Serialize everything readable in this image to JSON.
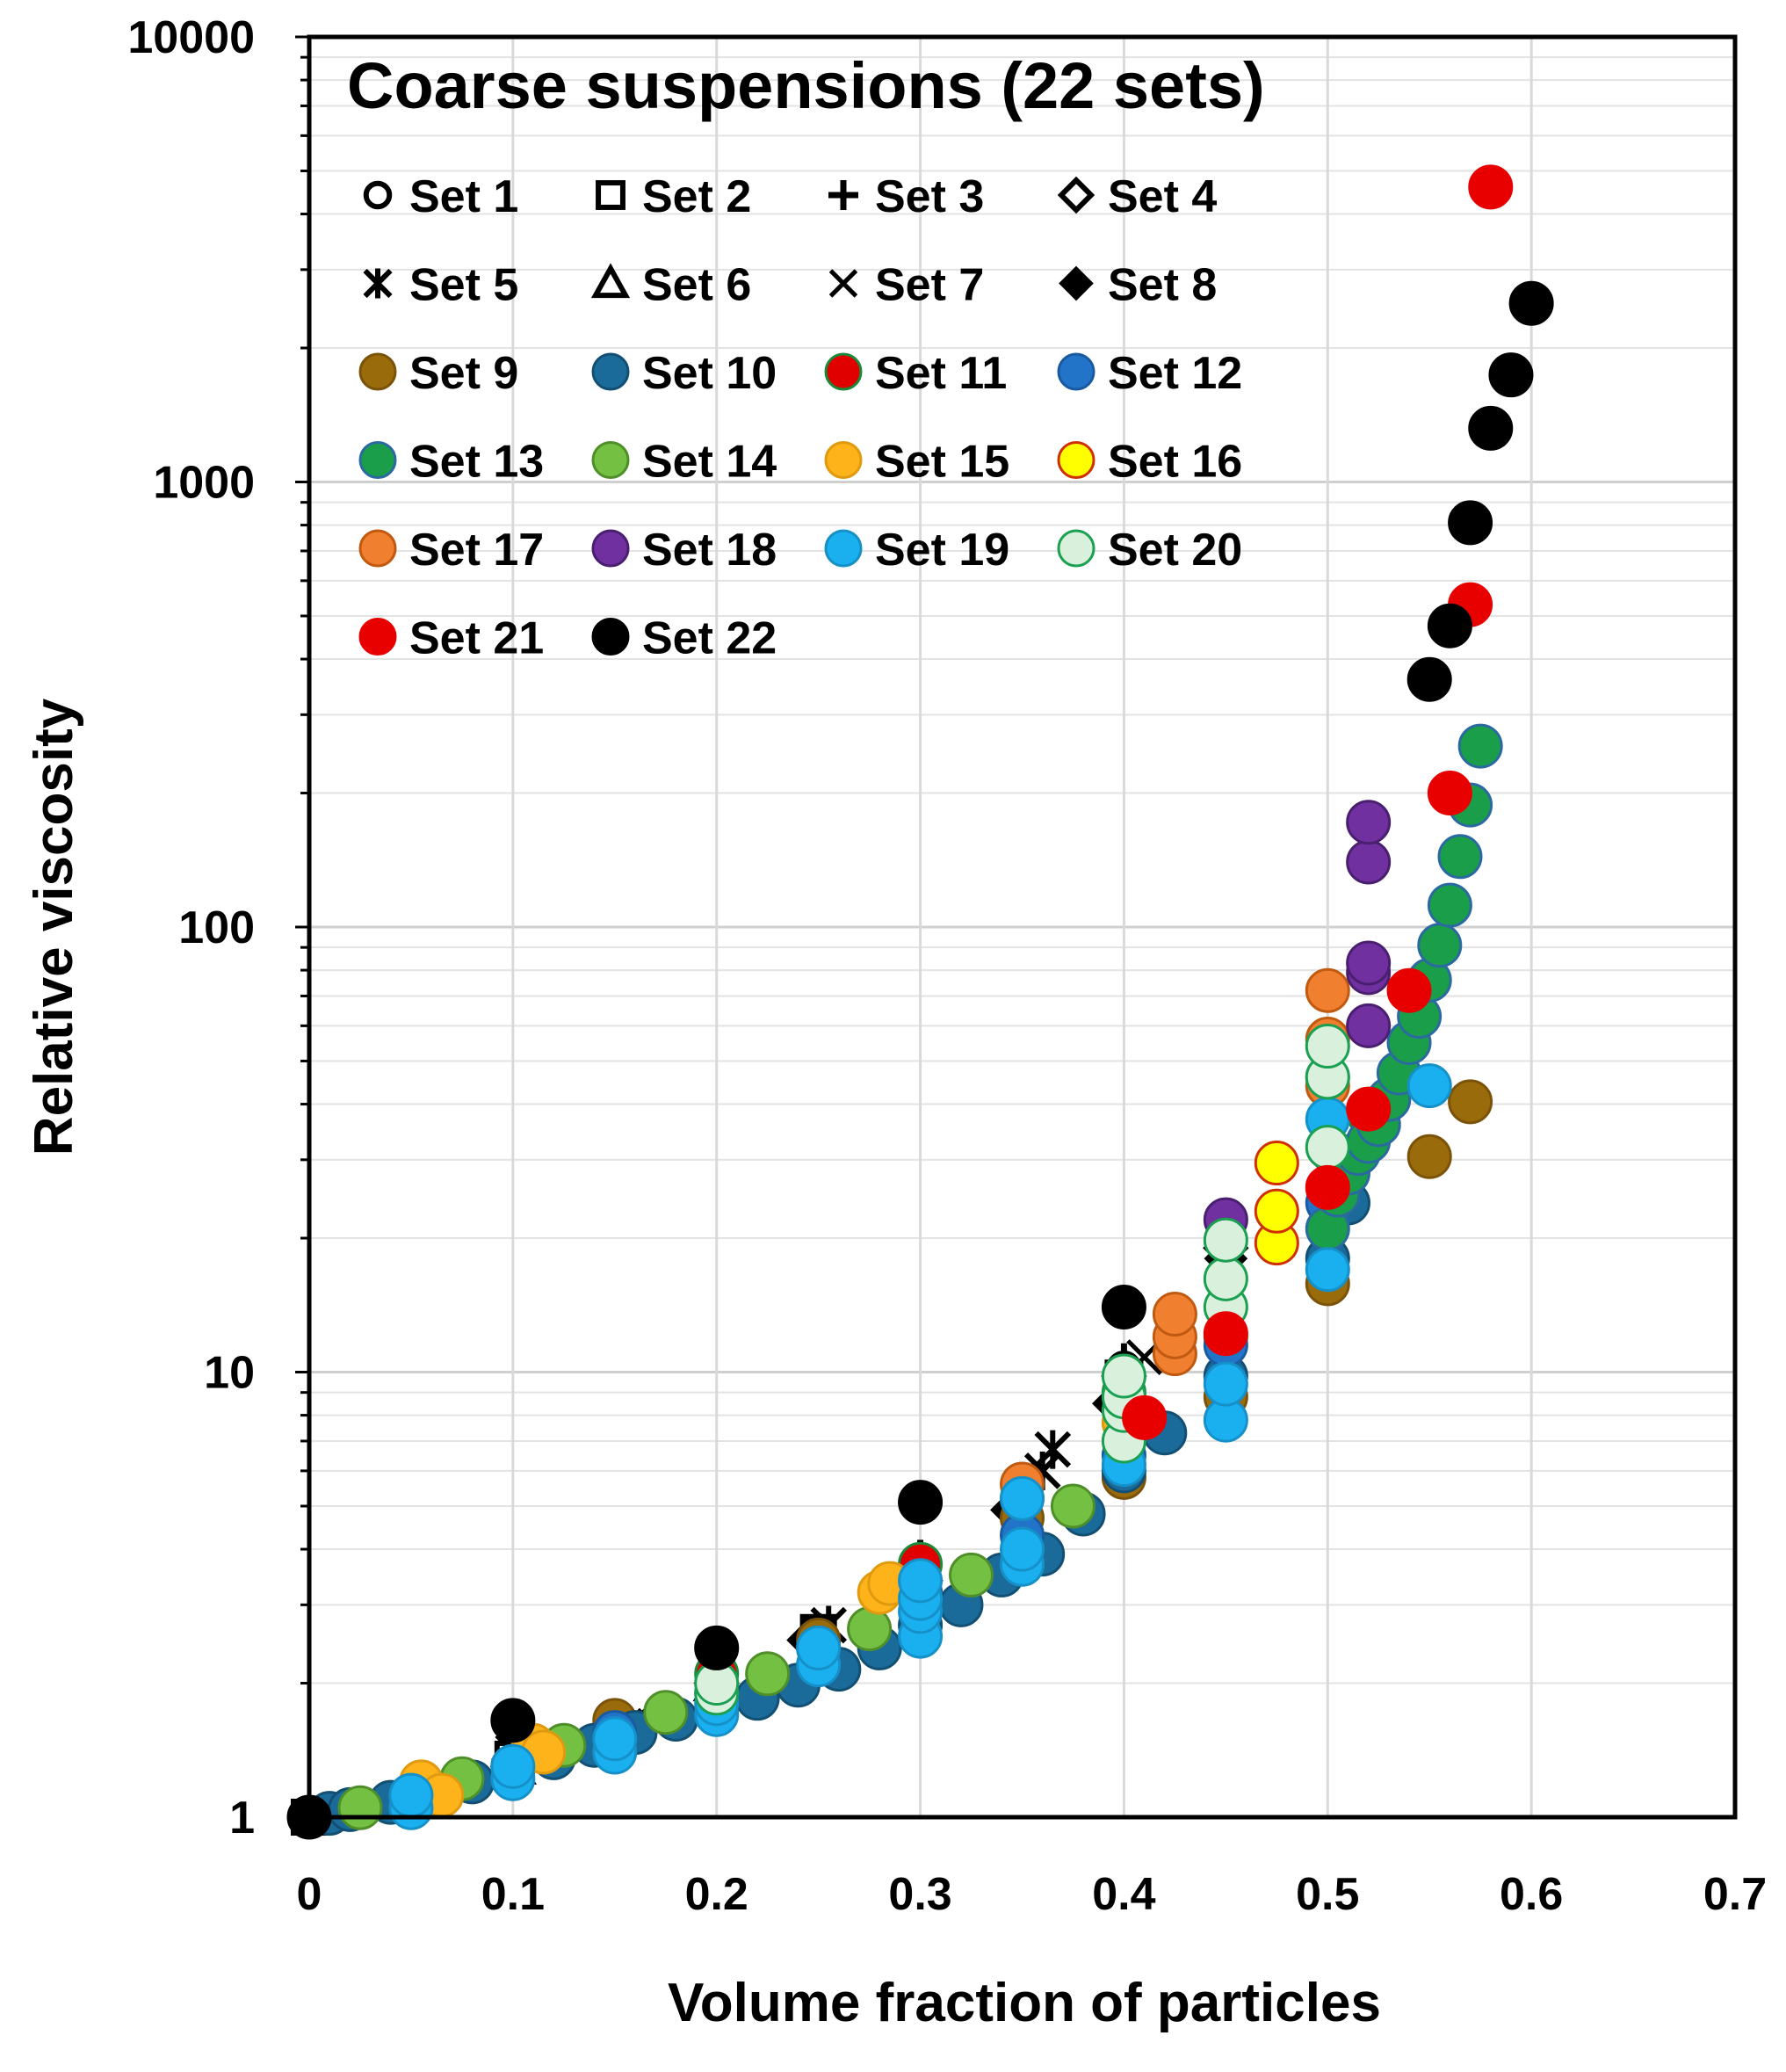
{
  "chart_data": {
    "type": "scatter",
    "title": "Coarse suspensions (22 sets)",
    "xlabel": "Volume fraction of particles",
    "ylabel": "Relative viscosity",
    "xlim": [
      0,
      0.7
    ],
    "ylim": [
      1,
      10000
    ],
    "yscale": "log",
    "grid": true,
    "legend_position": "top-left",
    "xticks": [
      0,
      0.1,
      0.2,
      0.3,
      0.4,
      0.5,
      0.6,
      0.7
    ],
    "xtick_labels": [
      "0",
      "0.1",
      "0.2",
      "0.3",
      "0.4",
      "0.5",
      "0.6",
      "0.7"
    ],
    "yticks": [
      1,
      10,
      100,
      1000,
      10000
    ],
    "ytick_labels": [
      "1",
      "10",
      "100",
      "1000",
      "10000"
    ],
    "series": [
      {
        "name": "Set 1",
        "marker": "circle-open",
        "fill": "#ffffff",
        "stroke": "#000000",
        "points": [
          [
            0,
            1
          ],
          [
            0.1,
            1.4
          ],
          [
            0.2,
            2.2
          ],
          [
            0.3,
            3.6
          ],
          [
            0.4,
            10.2
          ],
          [
            0.45,
            20
          ],
          [
            0.5,
            31
          ]
        ]
      },
      {
        "name": "Set 2",
        "marker": "square-open",
        "fill": "#ffffff",
        "stroke": "#000000",
        "points": [
          [
            0,
            1
          ],
          [
            0.05,
            1.1
          ],
          [
            0.1,
            1.35
          ],
          [
            0.15,
            1.6
          ],
          [
            0.2,
            2.05
          ],
          [
            0.25,
            2.6
          ],
          [
            0.3,
            3.5
          ],
          [
            0.35,
            5.3
          ],
          [
            0.4,
            9.5
          ]
        ]
      },
      {
        "name": "Set 3",
        "marker": "plus",
        "fill": "none",
        "stroke": "#000000",
        "points": [
          [
            0.05,
            1.1
          ],
          [
            0.1,
            1.35
          ],
          [
            0.15,
            1.65
          ],
          [
            0.2,
            2.1
          ],
          [
            0.25,
            2.6
          ],
          [
            0.3,
            3.8
          ],
          [
            0.35,
            5.6
          ],
          [
            0.4,
            10.5
          ]
        ]
      },
      {
        "name": "Set 4",
        "marker": "diamond-open",
        "fill": "#ffffff",
        "stroke": "#000000",
        "points": [
          [
            0.1,
            1.3
          ],
          [
            0.2,
            2.0
          ],
          [
            0.3,
            3.4
          ],
          [
            0.4,
            9.8
          ],
          [
            0.45,
            19
          ]
        ]
      },
      {
        "name": "Set 5",
        "marker": "asterisk",
        "fill": "none",
        "stroke": "#000000",
        "points": [
          [
            0.155,
            1.6
          ],
          [
            0.255,
            2.7
          ],
          [
            0.36,
            6.0
          ],
          [
            0.365,
            6.7
          ]
        ]
      },
      {
        "name": "Set 6",
        "marker": "triangle-open",
        "fill": "#ffffff",
        "stroke": "#000000",
        "points": [
          [
            0.1,
            1.3
          ],
          [
            0.2,
            2.0
          ],
          [
            0.3,
            3.3
          ],
          [
            0.4,
            9.0
          ]
        ]
      },
      {
        "name": "Set 7",
        "marker": "x",
        "fill": "none",
        "stroke": "#000000",
        "points": [
          [
            0.1,
            1.4
          ],
          [
            0.16,
            1.65
          ],
          [
            0.25,
            2.6
          ],
          [
            0.3,
            3.6
          ],
          [
            0.35,
            5.5
          ],
          [
            0.41,
            10.8
          ]
        ]
      },
      {
        "name": "Set 8",
        "marker": "diamond",
        "fill": "#000000",
        "stroke": "#000000",
        "points": [
          [
            0.05,
            1.1
          ],
          [
            0.1,
            1.35
          ],
          [
            0.2,
            2.0
          ],
          [
            0.245,
            2.5
          ],
          [
            0.3,
            3.6
          ],
          [
            0.345,
            4.9
          ],
          [
            0.395,
            8.5
          ],
          [
            0.45,
            18
          ]
        ]
      },
      {
        "name": "Set 9",
        "marker": "circle",
        "fill": "#9a6b0a",
        "stroke": "#7a5208",
        "points": [
          [
            0.15,
            1.65
          ],
          [
            0.25,
            2.5
          ],
          [
            0.35,
            4.7
          ],
          [
            0.4,
            5.8
          ],
          [
            0.45,
            8.8
          ],
          [
            0.5,
            15.8
          ],
          [
            0.55,
            30.5
          ],
          [
            0.57,
            40.5
          ]
        ]
      },
      {
        "name": "Set 10",
        "marker": "circle",
        "fill": "#1a6b9a",
        "stroke": "#124f73",
        "points": [
          [
            0.01,
            1.02
          ],
          [
            0.02,
            1.04
          ],
          [
            0.04,
            1.08
          ],
          [
            0.06,
            1.13
          ],
          [
            0.08,
            1.2
          ],
          [
            0.1,
            1.28
          ],
          [
            0.12,
            1.36
          ],
          [
            0.14,
            1.45
          ],
          [
            0.16,
            1.55
          ],
          [
            0.18,
            1.66
          ],
          [
            0.2,
            1.75
          ],
          [
            0.22,
            1.85
          ],
          [
            0.24,
            1.98
          ],
          [
            0.26,
            2.15
          ],
          [
            0.28,
            2.4
          ],
          [
            0.3,
            2.7
          ],
          [
            0.32,
            3.0
          ],
          [
            0.34,
            3.5
          ],
          [
            0.36,
            3.9
          ],
          [
            0.38,
            4.8
          ],
          [
            0.4,
            6.0
          ],
          [
            0.42,
            7.3
          ],
          [
            0.45,
            9.8
          ],
          [
            0.5,
            18
          ],
          [
            0.51,
            24
          ]
        ]
      },
      {
        "name": "Set 11",
        "marker": "circle",
        "fill": "#e00000",
        "stroke": "#1a8a3a",
        "points": [
          [
            0.2,
            2.1
          ],
          [
            0.3,
            3.7
          ],
          [
            0.35,
            5.2
          ],
          [
            0.4,
            9.0
          ],
          [
            0.45,
            12.0
          ],
          [
            0.5,
            46
          ],
          [
            0.52,
            38
          ]
        ]
      },
      {
        "name": "Set 12",
        "marker": "circle",
        "fill": "#2274c9",
        "stroke": "#1a5aa0",
        "points": [
          [
            0.05,
            1.12
          ],
          [
            0.1,
            1.3
          ],
          [
            0.15,
            1.55
          ],
          [
            0.2,
            1.9
          ],
          [
            0.25,
            2.4
          ],
          [
            0.3,
            3.2
          ],
          [
            0.35,
            4.3
          ],
          [
            0.4,
            6.5
          ],
          [
            0.45,
            11.5
          ],
          [
            0.5,
            24
          ]
        ]
      },
      {
        "name": "Set 13",
        "marker": "circle",
        "fill": "#1a9e4a",
        "stroke": "#2a6aa0",
        "points": [
          [
            0.5,
            21
          ],
          [
            0.505,
            25
          ],
          [
            0.51,
            28
          ],
          [
            0.515,
            31
          ],
          [
            0.52,
            33
          ],
          [
            0.525,
            36
          ],
          [
            0.53,
            41
          ],
          [
            0.535,
            47
          ],
          [
            0.54,
            55
          ],
          [
            0.545,
            63
          ],
          [
            0.55,
            76
          ],
          [
            0.555,
            91
          ],
          [
            0.56,
            112
          ],
          [
            0.565,
            144
          ],
          [
            0.57,
            188
          ],
          [
            0.575,
            255
          ]
        ]
      },
      {
        "name": "Set 14",
        "marker": "circle",
        "fill": "#74c043",
        "stroke": "#4f8f2a",
        "points": [
          [
            0.025,
            1.05
          ],
          [
            0.075,
            1.22
          ],
          [
            0.125,
            1.45
          ],
          [
            0.175,
            1.72
          ],
          [
            0.225,
            2.1
          ],
          [
            0.275,
            2.65
          ],
          [
            0.325,
            3.5
          ],
          [
            0.375,
            5.0
          ]
        ]
      },
      {
        "name": "Set 15",
        "marker": "circle",
        "fill": "#ffb31a",
        "stroke": "#e09a10",
        "points": [
          [
            0.055,
            1.2
          ],
          [
            0.065,
            1.12
          ],
          [
            0.11,
            1.45
          ],
          [
            0.115,
            1.4
          ],
          [
            0.28,
            3.2
          ],
          [
            0.285,
            3.35
          ],
          [
            0.4,
            7.7
          ]
        ]
      },
      {
        "name": "Set 16",
        "marker": "circle",
        "fill": "#ffff00",
        "stroke": "#d03000",
        "points": [
          [
            0.475,
            19.5
          ],
          [
            0.475,
            23
          ],
          [
            0.475,
            29.5
          ]
        ]
      },
      {
        "name": "Set 17",
        "marker": "circle",
        "fill": "#f07f30",
        "stroke": "#c05a10",
        "points": [
          [
            0.35,
            5.6
          ],
          [
            0.425,
            11
          ],
          [
            0.425,
            12
          ],
          [
            0.425,
            13.5
          ],
          [
            0.5,
            44
          ],
          [
            0.5,
            56
          ],
          [
            0.5,
            72
          ]
        ]
      },
      {
        "name": "Set 18",
        "marker": "circle",
        "fill": "#7030a0",
        "stroke": "#4a1f70",
        "points": [
          [
            0.45,
            22
          ],
          [
            0.52,
            60
          ],
          [
            0.52,
            79
          ],
          [
            0.52,
            83
          ],
          [
            0.52,
            140
          ],
          [
            0.52,
            172
          ]
        ]
      },
      {
        "name": "Set 19",
        "marker": "circle",
        "fill": "#1ab0f0",
        "stroke": "#1590c8",
        "points": [
          [
            0.05,
            1.05
          ],
          [
            0.05,
            1.12
          ],
          [
            0.1,
            1.22
          ],
          [
            0.1,
            1.3
          ],
          [
            0.15,
            1.4
          ],
          [
            0.15,
            1.5
          ],
          [
            0.2,
            1.7
          ],
          [
            0.2,
            1.8
          ],
          [
            0.25,
            2.2
          ],
          [
            0.25,
            2.4
          ],
          [
            0.3,
            2.55
          ],
          [
            0.3,
            2.9
          ],
          [
            0.3,
            3.1
          ],
          [
            0.3,
            3.4
          ],
          [
            0.35,
            3.7
          ],
          [
            0.35,
            4.0
          ],
          [
            0.35,
            5.2
          ],
          [
            0.4,
            6.2
          ],
          [
            0.45,
            7.8
          ],
          [
            0.45,
            9.4
          ],
          [
            0.5,
            17
          ],
          [
            0.5,
            37
          ],
          [
            0.55,
            44
          ]
        ]
      },
      {
        "name": "Set 20",
        "marker": "circle",
        "fill": "#d8f0dc",
        "stroke": "#1aa050",
        "points": [
          [
            0.2,
            1.9
          ],
          [
            0.2,
            2.0
          ],
          [
            0.4,
            7.0
          ],
          [
            0.4,
            8.2
          ],
          [
            0.4,
            8.8
          ],
          [
            0.4,
            9.8
          ],
          [
            0.45,
            14
          ],
          [
            0.45,
            16.2
          ],
          [
            0.45,
            19.8
          ],
          [
            0.5,
            32
          ],
          [
            0.5,
            46
          ],
          [
            0.5,
            54
          ]
        ]
      },
      {
        "name": "Set 21",
        "marker": "circle",
        "fill": "#e80000",
        "stroke": "#e80000",
        "points": [
          [
            0.41,
            7.9
          ],
          [
            0.45,
            12.2
          ],
          [
            0.5,
            26
          ],
          [
            0.52,
            39
          ],
          [
            0.54,
            72
          ],
          [
            0.56,
            200
          ],
          [
            0.57,
            530
          ],
          [
            0.58,
            4600
          ]
        ]
      },
      {
        "name": "Set 22",
        "marker": "circle",
        "fill": "#000000",
        "stroke": "#000000",
        "points": [
          [
            0,
            1
          ],
          [
            0.1,
            1.65
          ],
          [
            0.2,
            2.4
          ],
          [
            0.3,
            5.1
          ],
          [
            0.4,
            14
          ],
          [
            0.55,
            360
          ],
          [
            0.56,
            475
          ],
          [
            0.57,
            810
          ],
          [
            0.58,
            1320
          ],
          [
            0.59,
            1740
          ],
          [
            0.6,
            2520
          ]
        ]
      }
    ]
  }
}
